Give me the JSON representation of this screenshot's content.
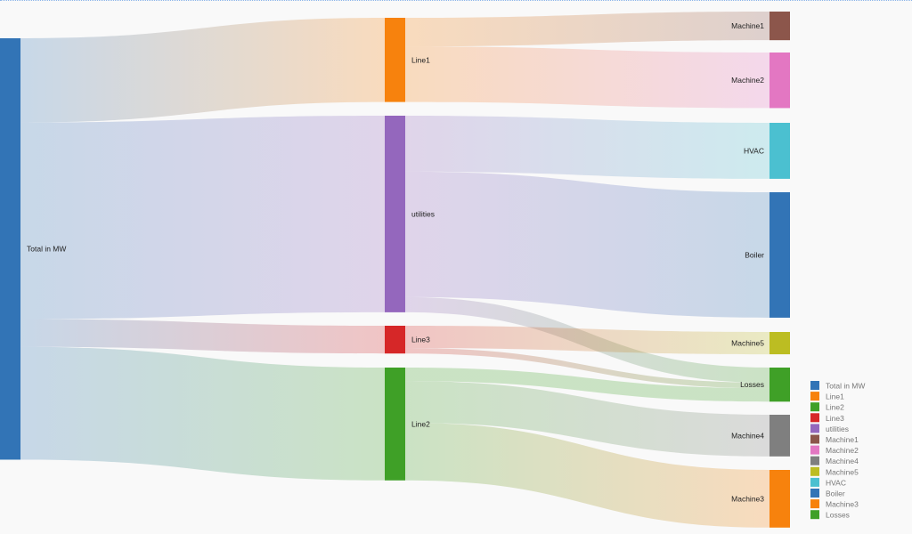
{
  "nodes": [
    {
      "id": "Total in MW",
      "color": "#3274b6",
      "column": 0
    },
    {
      "id": "Line1",
      "color": "#f7820d",
      "column": 1
    },
    {
      "id": "utilities",
      "color": "#9467bd",
      "column": 1
    },
    {
      "id": "Line3",
      "color": "#d62728",
      "column": 1
    },
    {
      "id": "Line2",
      "color": "#3fa027",
      "column": 1
    },
    {
      "id": "Machine1",
      "color": "#8c564b",
      "column": 2
    },
    {
      "id": "Machine2",
      "color": "#e377c2",
      "column": 2
    },
    {
      "id": "HVAC",
      "color": "#4bc0d0",
      "column": 2
    },
    {
      "id": "Boiler",
      "color": "#3274b6",
      "column": 2
    },
    {
      "id": "Machine5",
      "color": "#bcbd22",
      "column": 2
    },
    {
      "id": "Losses",
      "color": "#3fa027",
      "column": 2
    },
    {
      "id": "Machine4",
      "color": "#7f7f7f",
      "column": 2
    },
    {
      "id": "Machine3",
      "color": "#f7820d",
      "column": 2
    }
  ],
  "links": [
    {
      "source": "Total in MW",
      "target": "Line1",
      "value": 20
    },
    {
      "source": "Total in MW",
      "target": "utilities",
      "value": 46.7
    },
    {
      "source": "Total in MW",
      "target": "Line3",
      "value": 6.6
    },
    {
      "source": "Total in MW",
      "target": "Line2",
      "value": 26.8
    },
    {
      "source": "Line1",
      "target": "Machine1",
      "value": 6.8
    },
    {
      "source": "Line1",
      "target": "Machine2",
      "value": 13.2
    },
    {
      "source": "utilities",
      "target": "HVAC",
      "value": 13.3
    },
    {
      "source": "utilities",
      "target": "Boiler",
      "value": 29.8
    },
    {
      "source": "utilities",
      "target": "Losses",
      "value": 3.6
    },
    {
      "source": "Line3",
      "target": "Machine5",
      "value": 5.3
    },
    {
      "source": "Line3",
      "target": "Losses",
      "value": 1.3
    },
    {
      "source": "Line2",
      "target": "Losses",
      "value": 3.2
    },
    {
      "source": "Line2",
      "target": "Machine4",
      "value": 9.9
    },
    {
      "source": "Line2",
      "target": "Machine3",
      "value": 13.7
    }
  ],
  "legend": [
    {
      "label": "Total in MW",
      "color": "#3274b6"
    },
    {
      "label": "Line1",
      "color": "#f7820d"
    },
    {
      "label": "Line2",
      "color": "#3fa027"
    },
    {
      "label": "Line3",
      "color": "#d62728"
    },
    {
      "label": "utilities",
      "color": "#9467bd"
    },
    {
      "label": "Machine1",
      "color": "#8c564b"
    },
    {
      "label": "Machine2",
      "color": "#e377c2"
    },
    {
      "label": "Machine4",
      "color": "#7f7f7f"
    },
    {
      "label": "Machine5",
      "color": "#bcbd22"
    },
    {
      "label": "HVAC",
      "color": "#4bc0d0"
    },
    {
      "label": "Boiler",
      "color": "#3274b6"
    },
    {
      "label": "Machine3",
      "color": "#f7820d"
    },
    {
      "label": "Losses",
      "color": "#3fa027"
    }
  ]
}
